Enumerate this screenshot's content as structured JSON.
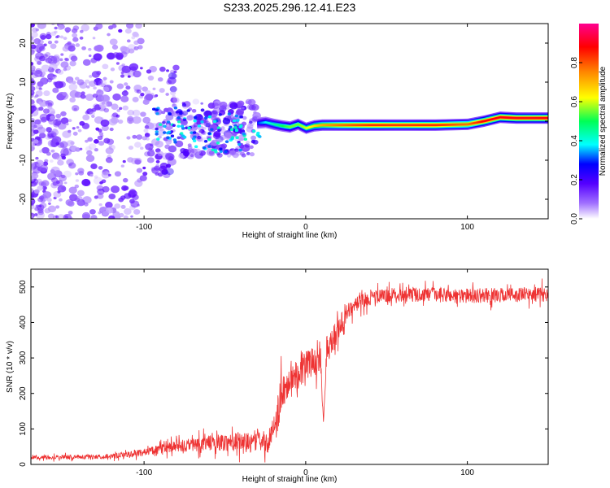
{
  "title": "S233.2025.296.12.41.E23",
  "colors": {
    "snr_line": "#ee3333",
    "ridge": "#e83030",
    "cmap": [
      "#ffffff",
      "#a070ff",
      "#5500ff",
      "#0000ff",
      "#00ffff",
      "#00ff55",
      "#ffff00",
      "#ff8800",
      "#ff0000",
      "#ff0090"
    ]
  },
  "chart_data": [
    {
      "name": "spectrogram",
      "type": "heatmap",
      "xlabel": "Height of straight line (km)",
      "ylabel": "Frequency (Hz)",
      "xlim": [
        -170,
        150
      ],
      "ylim": [
        -25,
        25
      ],
      "xticks": [
        -100,
        0,
        100
      ],
      "xtick_labels": [
        "-100",
        "0",
        "100"
      ],
      "yticks": [
        -20,
        -10,
        0,
        10,
        20
      ],
      "ytick_labels": [
        "-20",
        "-10",
        "0",
        "10",
        "20"
      ],
      "ridge": {
        "x": [
          -30,
          -25,
          -20,
          -15,
          -10,
          -5,
          0,
          5,
          10,
          20,
          40,
          60,
          80,
          100,
          110,
          120,
          130,
          150
        ],
        "freq": [
          -0.5,
          -0.3,
          -0.8,
          -1.2,
          -1.5,
          -0.8,
          -1.8,
          -1.2,
          -1.0,
          -1.0,
          -1.0,
          -1.0,
          -1.0,
          -0.8,
          0.0,
          1.0,
          0.8,
          0.8
        ],
        "amplitude": [
          0.35,
          0.45,
          0.5,
          0.55,
          0.6,
          0.6,
          0.65,
          0.7,
          0.75,
          0.8,
          0.85,
          0.85,
          0.85,
          0.8,
          0.9,
          0.9,
          0.9,
          0.9
        ]
      },
      "noise_region_x": [
        -170,
        -30
      ],
      "colorbar": {
        "label": "Normalized spectral amplitude",
        "range": [
          0,
          1
        ],
        "ticks": [
          0,
          0.2,
          0.4,
          0.6,
          0.8
        ],
        "tick_labels": [
          "0.0",
          "0.2",
          "0.4",
          "0.6",
          "0.8"
        ]
      }
    },
    {
      "name": "snr",
      "type": "line",
      "xlabel": "Height of straight line (km)",
      "ylabel": "SNR (10 * v/v)",
      "xlim": [
        -170,
        150
      ],
      "ylim": [
        0,
        550
      ],
      "xticks": [
        -100,
        0,
        100
      ],
      "xtick_labels": [
        "-100",
        "0",
        "100"
      ],
      "yticks": [
        0,
        100,
        200,
        300,
        400,
        500
      ],
      "ytick_labels": [
        "0",
        "100",
        "200",
        "300",
        "400",
        "500"
      ],
      "trend": {
        "x": [
          -170,
          -120,
          -100,
          -80,
          -60,
          -40,
          -35,
          -30,
          -22,
          -20,
          -18,
          -15,
          -10,
          -5,
          0,
          5,
          10,
          15,
          20,
          25,
          30,
          40,
          60,
          100,
          150
        ],
        "mean": [
          20,
          22,
          35,
          50,
          60,
          65,
          60,
          70,
          60,
          110,
          130,
          200,
          240,
          260,
          280,
          290,
          310,
          340,
          380,
          420,
          450,
          470,
          480,
          475,
          480
        ],
        "spread": [
          8,
          10,
          15,
          25,
          30,
          40,
          40,
          45,
          40,
          60,
          70,
          80,
          70,
          70,
          60,
          60,
          60,
          55,
          50,
          40,
          30,
          30,
          30,
          30,
          30
        ]
      },
      "notable_dips": [
        {
          "x": 11,
          "y": 120
        }
      ]
    }
  ]
}
